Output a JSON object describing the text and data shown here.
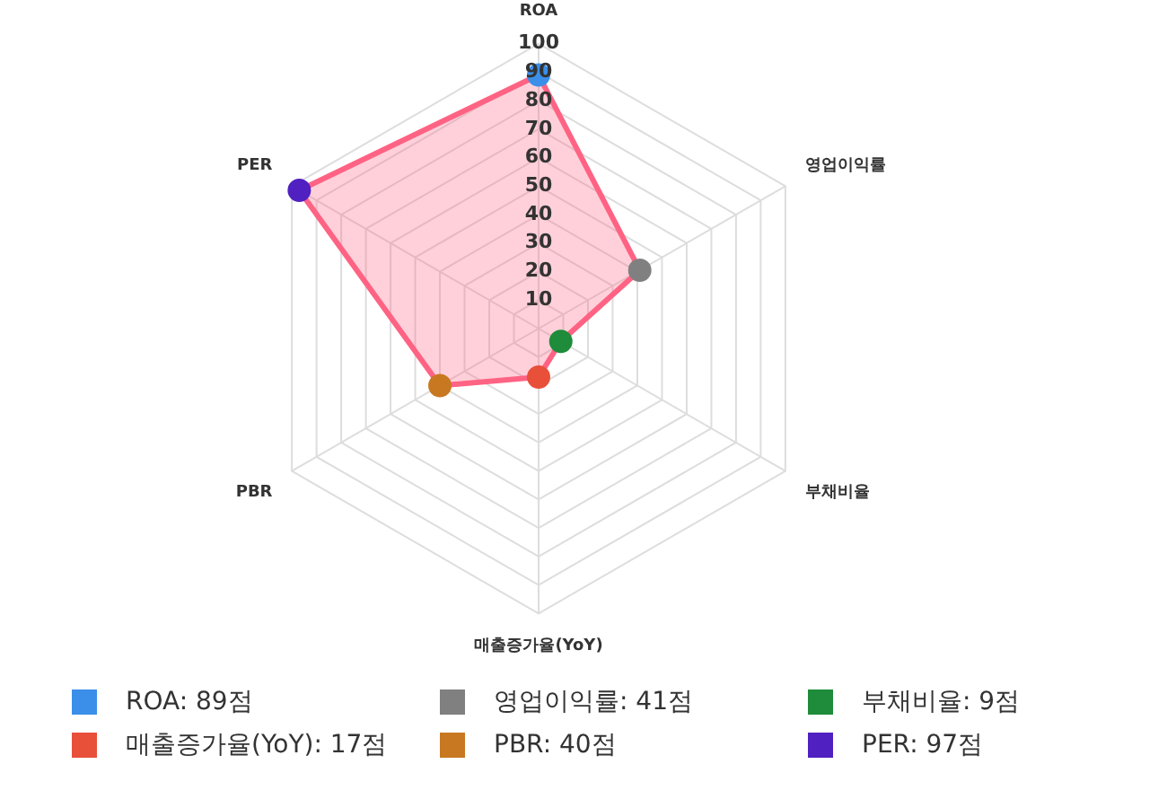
{
  "chart_data": {
    "type": "radar",
    "categories": [
      "ROA",
      "영업이익률",
      "부채비율",
      "매출증가율(YoY)",
      "PBR",
      "PER"
    ],
    "series": [
      {
        "color": "#ff6384",
        "colors": [
          "#3b8fe8",
          "#808080",
          "#1e8c3a",
          "#e8503a",
          "#c87820",
          "#5020c0"
        ],
        "values": [
          89,
          41,
          9,
          17,
          40,
          97
        ]
      }
    ],
    "annotations": [
      "ROA: 89점",
      "영업이익률: 41점",
      "부채비율: 9점",
      "매출증가율(YoY): 17점",
      "PBR: 40점",
      "PER: 97점"
    ],
    "ylim": [
      0,
      100
    ],
    "yticks": [
      10,
      20,
      30,
      40,
      50,
      60,
      70,
      80,
      90,
      100
    ],
    "grid": true,
    "marker": "circle"
  }
}
